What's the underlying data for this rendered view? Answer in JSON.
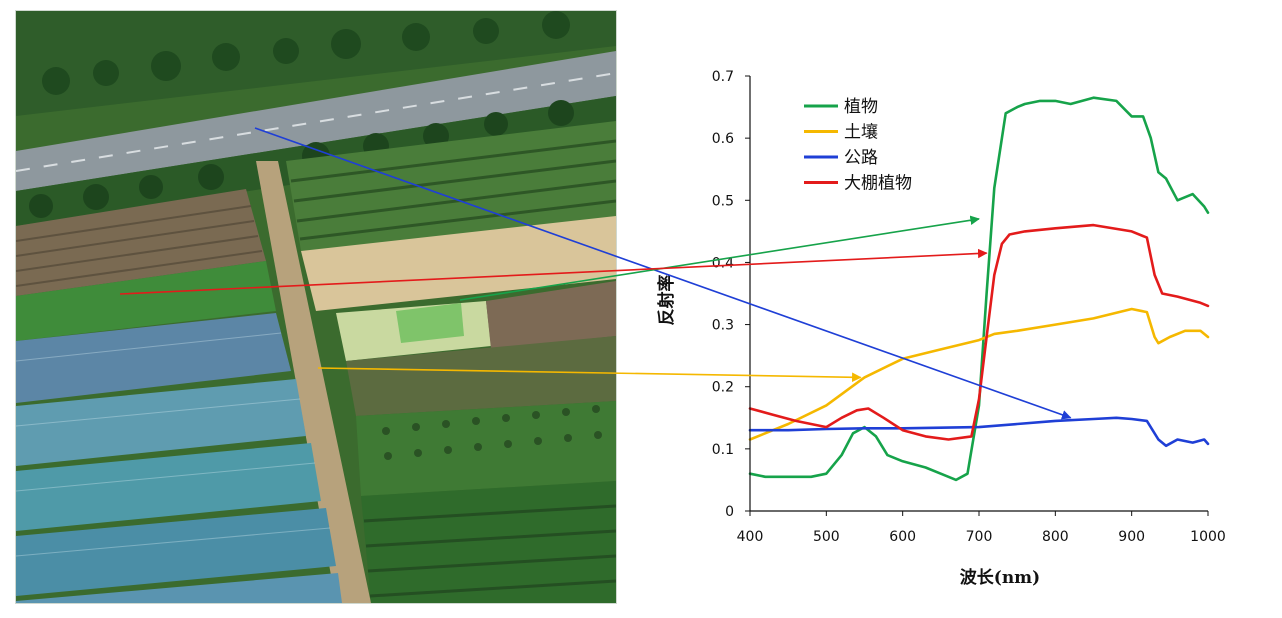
{
  "chart_data": {
    "type": "line",
    "title": "",
    "xlabel": "波长(nm)",
    "ylabel": "反射率",
    "xlim": [
      400,
      1000
    ],
    "ylim": [
      0,
      0.7
    ],
    "x_ticks": [
      400,
      500,
      600,
      700,
      800,
      900,
      1000
    ],
    "y_ticks": [
      0,
      0.1,
      0.2,
      0.3,
      0.4,
      0.5,
      0.6,
      0.7
    ],
    "grid": false,
    "legend_position": "top-left",
    "series": [
      {
        "name": "植物",
        "color": "#16a34a",
        "x": [
          400,
          420,
          450,
          480,
          500,
          520,
          535,
          550,
          565,
          580,
          600,
          630,
          650,
          670,
          685,
          700,
          710,
          720,
          735,
          750,
          760,
          780,
          800,
          820,
          850,
          880,
          900,
          915,
          925,
          935,
          945,
          960,
          980,
          995,
          1000
        ],
        "y": [
          0.06,
          0.055,
          0.055,
          0.055,
          0.06,
          0.09,
          0.125,
          0.135,
          0.12,
          0.09,
          0.08,
          0.07,
          0.06,
          0.05,
          0.06,
          0.17,
          0.35,
          0.52,
          0.64,
          0.65,
          0.655,
          0.66,
          0.66,
          0.655,
          0.665,
          0.66,
          0.635,
          0.635,
          0.6,
          0.545,
          0.535,
          0.5,
          0.51,
          0.49,
          0.48
        ]
      },
      {
        "name": "土壤",
        "color": "#f5b800",
        "x": [
          400,
          450,
          500,
          550,
          600,
          650,
          700,
          720,
          750,
          800,
          850,
          900,
          920,
          930,
          935,
          950,
          970,
          990,
          1000
        ],
        "y": [
          0.115,
          0.14,
          0.17,
          0.215,
          0.245,
          0.26,
          0.275,
          0.285,
          0.29,
          0.3,
          0.31,
          0.325,
          0.32,
          0.28,
          0.27,
          0.28,
          0.29,
          0.29,
          0.28
        ]
      },
      {
        "name": "公路",
        "color": "#1f3fd6",
        "x": [
          400,
          450,
          500,
          550,
          600,
          650,
          700,
          750,
          800,
          850,
          880,
          900,
          920,
          935,
          945,
          960,
          980,
          995,
          1000
        ],
        "y": [
          0.13,
          0.13,
          0.132,
          0.133,
          0.133,
          0.134,
          0.135,
          0.14,
          0.145,
          0.148,
          0.15,
          0.148,
          0.145,
          0.115,
          0.105,
          0.115,
          0.11,
          0.115,
          0.108
        ]
      },
      {
        "name": "大棚植物",
        "color": "#e31b1b",
        "x": [
          400,
          430,
          460,
          500,
          520,
          540,
          555,
          575,
          600,
          630,
          660,
          690,
          700,
          710,
          720,
          730,
          740,
          760,
          800,
          850,
          900,
          920,
          930,
          940,
          960,
          990,
          1000
        ],
        "y": [
          0.165,
          0.155,
          0.145,
          0.135,
          0.15,
          0.162,
          0.165,
          0.15,
          0.13,
          0.12,
          0.115,
          0.12,
          0.18,
          0.28,
          0.38,
          0.43,
          0.445,
          0.45,
          0.455,
          0.46,
          0.45,
          0.44,
          0.38,
          0.35,
          0.345,
          0.335,
          0.33
        ]
      }
    ],
    "annotations": {
      "arrows": [
        {
          "series": "公路",
          "color": "#1f3fd6",
          "end_x": 820,
          "end_y": 0.15
        },
        {
          "series": "植物",
          "color": "#16a34a",
          "end_x": 700,
          "end_y": 0.47
        },
        {
          "series": "大棚植物",
          "color": "#e31b1b",
          "end_x": 710,
          "end_y": 0.415
        },
        {
          "series": "土壤",
          "color": "#f5b800",
          "end_x": 545,
          "end_y": 0.215
        }
      ]
    }
  }
}
